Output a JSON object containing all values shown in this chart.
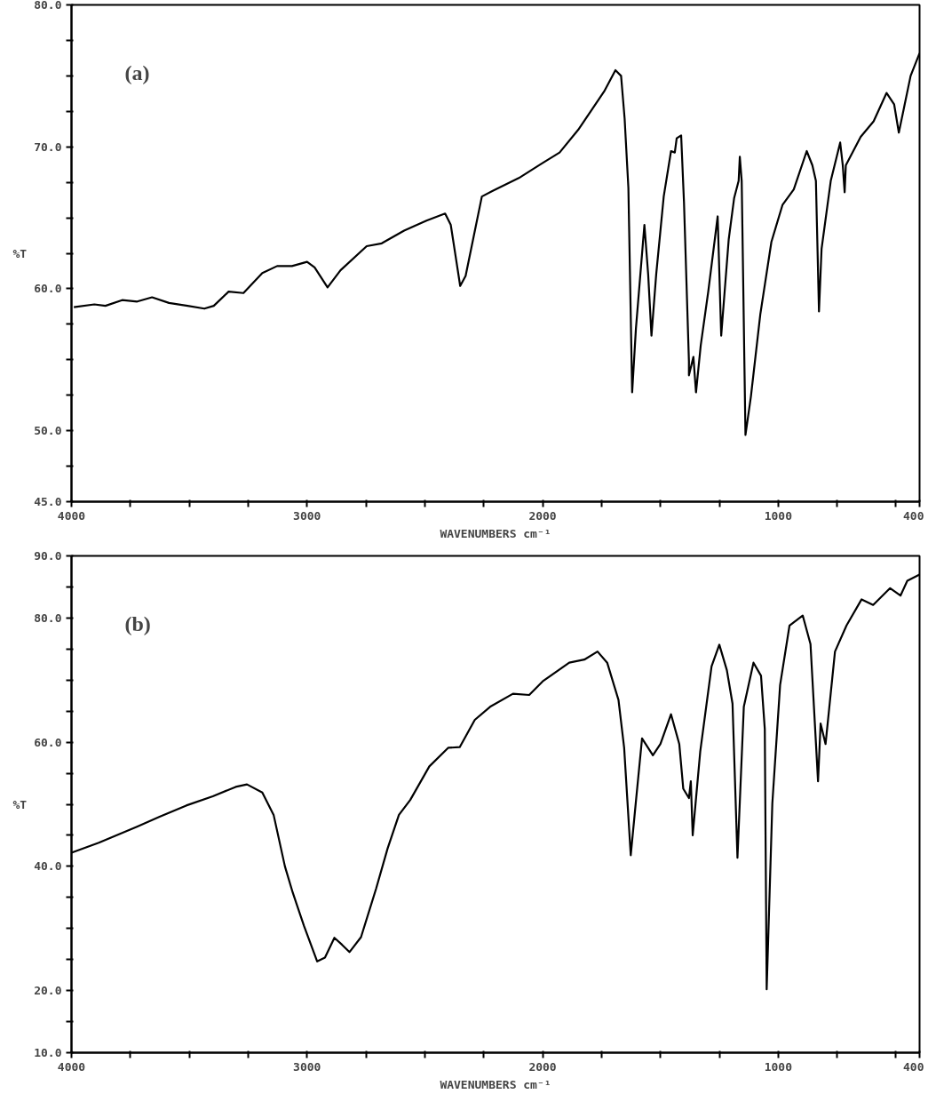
{
  "chart_data": [
    {
      "type": "line",
      "xlabel": "WAVENUMBERS cm⁻¹",
      "ylabel": "%T",
      "annotations": [
        "(a)"
      ],
      "grid": false,
      "marker": "none",
      "line_style": "solid",
      "xlim": [
        4000,
        400
      ],
      "ylim": [
        45,
        80
      ],
      "xticks": [
        4000,
        {
          "value": 3750,
          "label": null
        },
        {
          "value": 3500,
          "label": null
        },
        {
          "value": 3250,
          "label": null
        },
        3000,
        {
          "value": 2750,
          "label": null
        },
        {
          "value": 2500,
          "label": null
        },
        {
          "value": 2250,
          "label": null
        },
        2000,
        {
          "value": 1750,
          "label": null
        },
        {
          "value": 1500,
          "label": null
        },
        {
          "value": 1250,
          "label": null
        },
        1000,
        {
          "value": 750,
          "label": null
        },
        {
          "value": 500,
          "label": null
        },
        400
      ],
      "yticks": [
        {
          "value": 45,
          "label": "45.0"
        },
        {
          "value": 47.5,
          "label": null
        },
        {
          "value": 50,
          "label": "50.0"
        },
        {
          "value": 52.5,
          "label": null
        },
        {
          "value": 55,
          "label": null
        },
        {
          "value": 57.5,
          "label": null
        },
        {
          "value": 60,
          "label": "60.0"
        },
        {
          "value": 62.5,
          "label": null
        },
        {
          "value": 65,
          "label": null
        },
        {
          "value": 67.5,
          "label": null
        },
        {
          "value": 70,
          "label": "70.0"
        },
        {
          "value": 72.5,
          "label": null
        },
        {
          "value": 75,
          "label": null
        },
        {
          "value": 77.5,
          "label": null
        },
        {
          "value": 80,
          "label": "80.0"
        }
      ],
      "series": [
        {
          "color": "#000000",
          "x": [
            3990,
            3903,
            3856,
            3785,
            3721,
            3658,
            3586,
            3507,
            3436,
            3396,
            3333,
            3270,
            3190,
            3127,
            3064,
            3000,
            2968,
            2913,
            2858,
            2747,
            2683,
            2588,
            2493,
            2414,
            2390,
            2350,
            2327,
            2258,
            2212,
            2101,
            2006,
            1928,
            1849,
            1739,
            1691,
            1667,
            1652,
            1636,
            1620,
            1604,
            1568,
            1552,
            1538,
            1518,
            1486,
            1455,
            1439,
            1431,
            1412,
            1400,
            1379,
            1379,
            1360,
            1349,
            1329,
            1297,
            1257,
            1242,
            1210,
            1187,
            1168,
            1163,
            1155,
            1139,
            1116,
            1076,
            1029,
            982,
            934,
            879,
            855,
            840,
            827,
            816,
            777,
            737,
            726,
            718,
            713,
            650,
            595,
            540,
            508,
            488,
            438,
            400
          ],
          "values": [
            58.7,
            58.9,
            58.8,
            59.2,
            59.1,
            59.4,
            59.0,
            58.8,
            58.6,
            58.8,
            59.8,
            59.7,
            61.1,
            61.6,
            61.6,
            61.9,
            61.5,
            60.1,
            61.3,
            63.0,
            63.2,
            64.1,
            64.8,
            65.3,
            64.5,
            60.2,
            60.9,
            66.5,
            66.9,
            67.8,
            68.8,
            69.6,
            71.2,
            73.9,
            75.4,
            75.0,
            72.0,
            67.1,
            52.7,
            57.2,
            64.5,
            61.0,
            56.7,
            61.0,
            66.5,
            69.7,
            69.6,
            70.6,
            70.8,
            66.1,
            54.9,
            53.9,
            55.2,
            52.7,
            56.0,
            59.8,
            65.1,
            56.7,
            63.5,
            66.4,
            67.6,
            69.3,
            67.6,
            49.7,
            52.4,
            58.2,
            63.3,
            65.9,
            67.0,
            69.7,
            68.7,
            67.6,
            58.4,
            62.8,
            67.6,
            70.3,
            68.7,
            66.8,
            68.7,
            70.7,
            71.8,
            73.8,
            73.0,
            71.0,
            75.0,
            76.6
          ]
        }
      ]
    },
    {
      "type": "line",
      "xlabel": "WAVENUMBERS cm⁻¹",
      "ylabel": "%T",
      "annotations": [
        "(b)"
      ],
      "grid": false,
      "marker": "none",
      "line_style": "solid",
      "xlim": [
        4000,
        400
      ],
      "ylim": [
        10,
        90
      ],
      "xticks": [
        4000,
        {
          "value": 3750,
          "label": null
        },
        {
          "value": 3500,
          "label": null
        },
        {
          "value": 3250,
          "label": null
        },
        3000,
        {
          "value": 2750,
          "label": null
        },
        {
          "value": 2500,
          "label": null
        },
        {
          "value": 2250,
          "label": null
        },
        2000,
        {
          "value": 1750,
          "label": null
        },
        {
          "value": 1500,
          "label": null
        },
        {
          "value": 1250,
          "label": null
        },
        1000,
        {
          "value": 750,
          "label": null
        },
        {
          "value": 500,
          "label": null
        },
        400
      ],
      "yticks": [
        {
          "value": 10,
          "label": "10.0"
        },
        {
          "value": 15,
          "label": null
        },
        {
          "value": 20,
          "label": "20.0"
        },
        {
          "value": 25,
          "label": null
        },
        {
          "value": 30,
          "label": null
        },
        {
          "value": 35,
          "label": null
        },
        {
          "value": 40,
          "label": "40.0"
        },
        {
          "value": 45,
          "label": null
        },
        {
          "value": 50,
          "label": null
        },
        {
          "value": 55,
          "label": null
        },
        {
          "value": 60,
          "label": "60.0"
        },
        {
          "value": 65,
          "label": null
        },
        {
          "value": 70,
          "label": null
        },
        {
          "value": 75,
          "label": null
        },
        {
          "value": 80,
          "label": "80.0"
        },
        {
          "value": 85,
          "label": null
        },
        {
          "value": 90,
          "label": "90.0"
        }
      ],
      "series": [
        {
          "color": "#000000",
          "x": [
            4000,
            3884,
            3722,
            3626,
            3513,
            3400,
            3303,
            3255,
            3190,
            3142,
            3094,
            3061,
            3013,
            2957,
            2924,
            2884,
            2852,
            2820,
            2771,
            2707,
            2658,
            2610,
            2562,
            2481,
            2401,
            2352,
            2288,
            2223,
            2126,
            2057,
            2000,
            1887,
            1823,
            1767,
            1726,
            1678,
            1654,
            1626,
            1605,
            1578,
            1532,
            1500,
            1455,
            1420,
            1403,
            1379,
            1371,
            1363,
            1331,
            1283,
            1250,
            1218,
            1194,
            1173,
            1146,
            1105,
            1073,
            1057,
            1049,
            1025,
            992,
            952,
            896,
            863,
            831,
            820,
            799,
            759,
            710,
            646,
            597,
            525,
            481,
            452,
            400
          ],
          "values": [
            42.2,
            43.8,
            46.4,
            48.0,
            49.8,
            51.3,
            52.8,
            53.2,
            51.9,
            48.3,
            40.0,
            35.8,
            30.4,
            24.7,
            25.3,
            28.5,
            27.4,
            26.2,
            28.6,
            36.4,
            42.9,
            48.3,
            50.7,
            56.1,
            59.1,
            59.2,
            63.6,
            65.7,
            67.8,
            67.6,
            69.8,
            72.8,
            73.3,
            74.6,
            72.8,
            66.8,
            59.1,
            41.8,
            50.1,
            60.6,
            57.9,
            59.7,
            64.5,
            59.7,
            52.5,
            51.0,
            53.7,
            45.0,
            58.5,
            72.2,
            75.7,
            71.6,
            66.2,
            41.4,
            65.7,
            72.8,
            70.7,
            62.1,
            20.2,
            50.1,
            69.2,
            78.8,
            80.4,
            75.8,
            53.7,
            63.0,
            59.7,
            74.6,
            78.8,
            83.0,
            82.1,
            84.8,
            83.6,
            86.0,
            87.0
          ]
        }
      ]
    }
  ]
}
